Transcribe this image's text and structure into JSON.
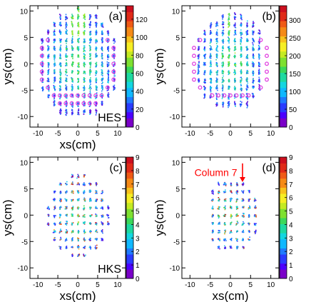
{
  "chart_data": [
    {
      "type": "heatmap",
      "panel_label": "(a)",
      "tag": "HES",
      "xlabel": "xs(cm)",
      "ylabel": "ys(cm)",
      "xlim": [
        -12,
        12
      ],
      "ylim": [
        -12,
        11
      ],
      "xticks": [
        -10,
        -5,
        0,
        5,
        10
      ],
      "yticks": [
        -10,
        -5,
        0,
        5,
        10
      ],
      "z_range": [
        0,
        135
      ],
      "z_ticks": [
        0,
        20,
        40,
        60,
        80,
        100,
        120
      ],
      "pattern": {
        "column_spacing": 1.5,
        "row_spacing": 1.5,
        "radius": 10.3,
        "x_span": [
          -9,
          9
        ],
        "y_span": [
          -9,
          10.5
        ]
      },
      "marker_rows": [
        {
          "y": 4.5,
          "x": [
            -7.5,
            7.5
          ]
        },
        {
          "y": 3.0,
          "x": [
            -9,
            9
          ]
        },
        {
          "y": 1.5,
          "x": [
            -9,
            9
          ]
        },
        {
          "y": 0.0,
          "x": [
            -9,
            9
          ]
        },
        {
          "y": -1.5,
          "x": [
            -9,
            9
          ]
        },
        {
          "y": -3.0,
          "x": [
            -9,
            9
          ]
        },
        {
          "y": -4.5,
          "x": [
            -7.5,
            7.5
          ]
        },
        {
          "y": -6.0,
          "x": [
            -6,
            -4.5,
            -3,
            -1.5,
            0,
            1.5,
            3,
            4.5,
            6
          ]
        },
        {
          "y": -7.5,
          "x": [
            -4.5,
            -3,
            -1.5,
            0,
            1.5,
            3,
            4.5
          ]
        }
      ]
    },
    {
      "type": "heatmap",
      "panel_label": "(b)",
      "tag": "",
      "xlabel": "",
      "ylabel": "ys(cm)",
      "xlim": [
        -12,
        12
      ],
      "ylim": [
        -12,
        11
      ],
      "xticks": [
        -10,
        -5,
        0,
        5,
        10
      ],
      "yticks": [
        -10,
        -5,
        0,
        5,
        10
      ],
      "z_range": [
        0,
        340
      ],
      "z_ticks": [
        0,
        50,
        100,
        150,
        200,
        250,
        300
      ],
      "pattern": {
        "column_spacing": 1.5,
        "row_spacing": 1.5,
        "radius": 9.2,
        "x_span": [
          -8,
          8
        ],
        "y_span": [
          -7.5,
          10
        ]
      },
      "marker_rows": [
        {
          "y": 4.5,
          "x": [
            -7.5,
            7.5
          ]
        },
        {
          "y": 3.0,
          "x": [
            -9,
            9
          ]
        },
        {
          "y": 1.5,
          "x": [
            -9,
            9
          ]
        },
        {
          "y": 0.0,
          "x": [
            -9,
            9
          ]
        },
        {
          "y": -1.5,
          "x": [
            -9,
            9
          ]
        },
        {
          "y": -3.0,
          "x": [
            -9,
            9
          ]
        },
        {
          "y": -4.5,
          "x": [
            -7.5,
            7.5
          ]
        },
        {
          "y": -6.0,
          "x": [
            -4.5,
            -3,
            -1.5,
            0,
            1.5,
            3,
            4.5
          ]
        }
      ]
    },
    {
      "type": "heatmap",
      "panel_label": "(c)",
      "tag": "HKS",
      "xlabel": "xs(cm)",
      "ylabel": "ys(cm)",
      "xlim": [
        -12,
        12
      ],
      "ylim": [
        -12,
        11
      ],
      "xticks": [
        -10,
        -5,
        0,
        5,
        10
      ],
      "yticks": [
        -10,
        -5,
        0,
        5,
        10
      ],
      "z_range": [
        0,
        9
      ],
      "z_ticks": [
        0,
        1,
        2,
        3,
        4,
        5,
        6,
        7,
        8,
        9
      ],
      "pattern": {
        "column_spacing": 1.5,
        "row_spacing": 1.5,
        "radius": 8.0,
        "x_span": [
          -9,
          9
        ],
        "y_span": [
          -7.5,
          7.5
        ]
      },
      "marker_rows": []
    },
    {
      "type": "heatmap",
      "panel_label": "(d)",
      "tag": "",
      "xlabel": "xs(cm)",
      "ylabel": "ys(cm)",
      "xlim": [
        -12,
        12
      ],
      "ylim": [
        -12,
        11
      ],
      "xticks": [
        -10,
        -5,
        0,
        5,
        10
      ],
      "yticks": [
        -10,
        -5,
        0,
        5,
        10
      ],
      "z_range": [
        0,
        9
      ],
      "z_ticks": [
        0,
        1,
        2,
        3,
        4,
        5,
        6,
        7,
        8,
        9
      ],
      "pattern": {
        "column_spacing": 1.5,
        "row_spacing": 1.5,
        "radius": 7.0,
        "x_span": [
          -4.5,
          7.5
        ],
        "y_span": [
          -6,
          6
        ]
      },
      "marker_rows": [],
      "annotation": {
        "text": "Column 7",
        "color": "#ff0000",
        "arrow_to": [
          3.0,
          6.4
        ]
      }
    }
  ],
  "colors": {
    "palette": [
      "#ffffff",
      "#6a0dd6",
      "#3a2cff",
      "#1e78ff",
      "#18c8f0",
      "#2bd39a",
      "#44dc44",
      "#a6ea2a",
      "#f8f22a",
      "#f5a81a",
      "#ee4e16",
      "#d8121c"
    ],
    "marker": "#e040e0",
    "annotation": "#ff0000"
  }
}
